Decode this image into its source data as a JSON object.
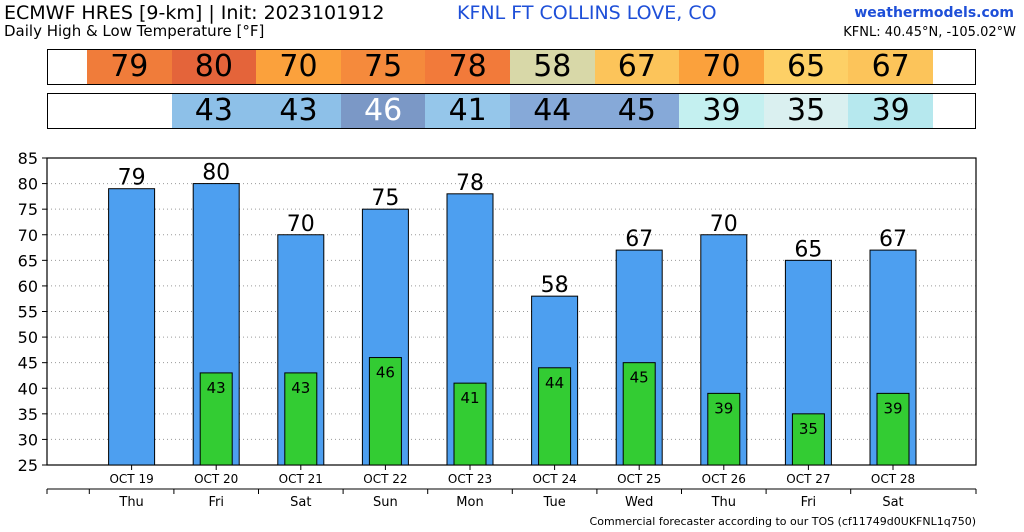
{
  "header": {
    "model_title": "ECMWF HRES [9-km] | Init: 2023101912",
    "station": "KFNL FT COLLINS LOVE, CO",
    "brand": "weathermodels.com",
    "subtitle": "Daily High & Low Temperature [°F]",
    "coords": "KFNL: 40.45°N, -105.02°W"
  },
  "footer": "Commercial forecaster according to our TOS (cf11749d0UKFNL1q750)",
  "strips": {
    "high": {
      "values": [
        "79",
        "80",
        "70",
        "75",
        "78",
        "58",
        "67",
        "70",
        "65",
        "67"
      ],
      "colors": [
        "#f07c3a",
        "#e4643a",
        "#fba13c",
        "#f58a3c",
        "#f27a3a",
        "#d8d8a8",
        "#fcc45a",
        "#fba13c",
        "#fdd066",
        "#fcc45a"
      ]
    },
    "low": {
      "values": [
        "",
        "43",
        "43",
        "46",
        "41",
        "44",
        "45",
        "39",
        "35",
        "39"
      ],
      "colors": [
        "",
        "#8dc0e8",
        "#8dc0e8",
        "#7b98c6",
        "#95c6ea",
        "#86a9d8",
        "#86a9d8",
        "#c4f0f0",
        "#daf0f0",
        "#b6e8ee"
      ],
      "text_colors": [
        "#000",
        "#000",
        "#000",
        "#ffffff",
        "#000",
        "#000",
        "#000",
        "#000",
        "#000",
        "#000"
      ]
    }
  },
  "chart_data": {
    "type": "bar",
    "categories": [
      "OCT 19",
      "OCT 20",
      "OCT 21",
      "OCT 22",
      "OCT 23",
      "OCT 24",
      "OCT 25",
      "OCT 26",
      "OCT 27",
      "OCT 28"
    ],
    "weekdays": [
      "Thu",
      "Fri",
      "Sat",
      "Sun",
      "Mon",
      "Tue",
      "Wed",
      "Thu",
      "Fri",
      "Sat"
    ],
    "series": [
      {
        "values": [
          79,
          80,
          70,
          75,
          78,
          58,
          67,
          70,
          65,
          67
        ],
        "color": "#4d9ff0"
      },
      {
        "values": [
          null,
          43,
          43,
          46,
          41,
          44,
          45,
          39,
          35,
          39
        ],
        "color": "#33cc33"
      }
    ],
    "high_labels": [
      "79",
      "80",
      "70",
      "75",
      "78",
      "58",
      "67",
      "70",
      "65",
      "67"
    ],
    "low_labels": [
      "",
      "43",
      "43",
      "46",
      "41",
      "44",
      "45",
      "39",
      "35",
      "39"
    ],
    "yticks": [
      "25",
      "30",
      "35",
      "40",
      "45",
      "50",
      "55",
      "60",
      "65",
      "70",
      "75",
      "80",
      "85"
    ],
    "ylim": [
      25,
      85
    ],
    "grid": true
  }
}
